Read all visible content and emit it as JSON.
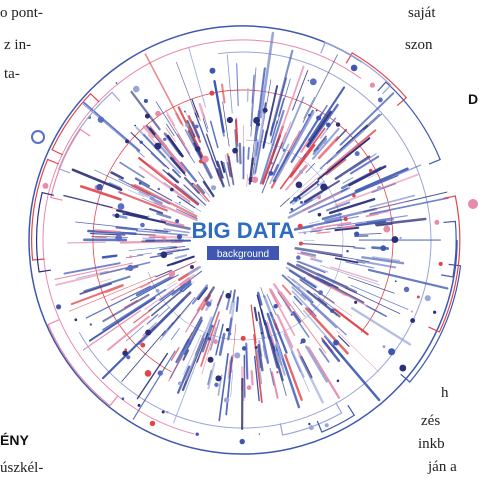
{
  "left_column_top": {
    "lines": [
      "o pont-",
      "z in-",
      "ta-"
    ]
  },
  "right_column_top": {
    "lines": [
      "saját",
      "szon"
    ]
  },
  "right_heading": "D",
  "right_column_bottom": {
    "lines": [
      "h",
      "zés",
      "inkb",
      "ján a"
    ]
  },
  "left_heading": "ÉNY",
  "left_column_bottom": {
    "lines": [
      "úszkél-"
    ]
  },
  "illustration": {
    "title": "BIG DATA",
    "subtitle": "background"
  }
}
